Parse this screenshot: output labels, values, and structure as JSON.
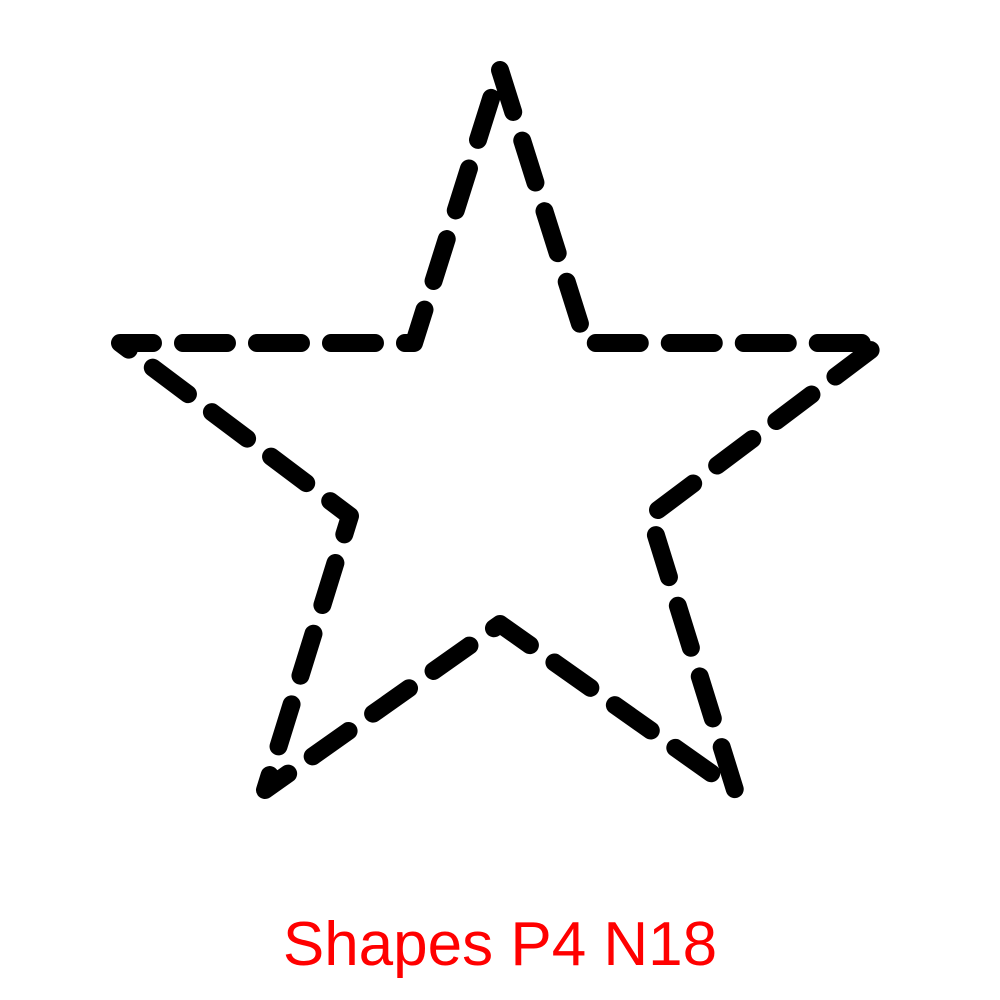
{
  "worksheet": {
    "shape": "star",
    "style": "dashed-outline",
    "stroke_color": "#000000",
    "background_color": "#ffffff",
    "caption": "Shapes P4 N18",
    "caption_color": "#ff0000"
  }
}
